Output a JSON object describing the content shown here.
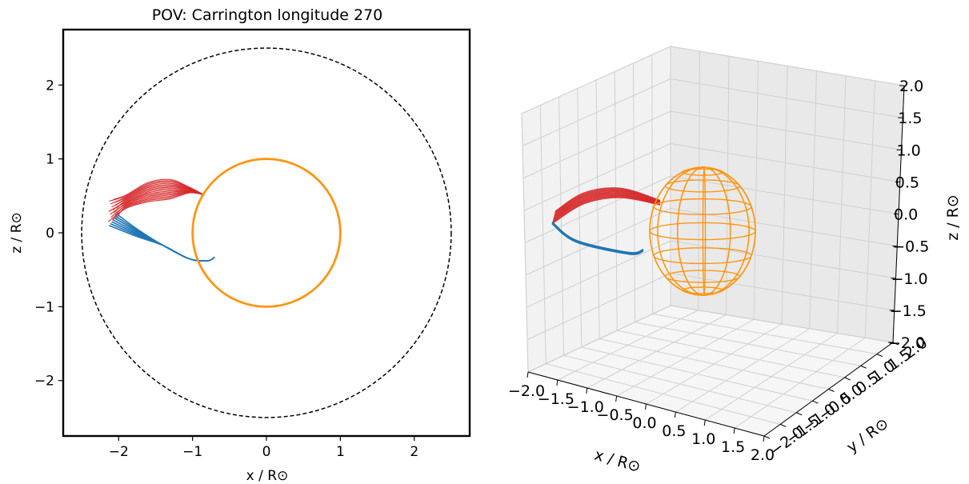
{
  "chart_data": [
    {
      "type": "line",
      "title": "POV: Carrington longitude 270",
      "xlabel": "x / R⊙",
      "ylabel": "z / R⊙",
      "xlim": [
        -2.75,
        2.75
      ],
      "ylim": [
        -2.75,
        2.75
      ],
      "xticks": [
        -2,
        -1,
        0,
        1,
        2
      ],
      "yticks": [
        -2,
        -1,
        0,
        1,
        2
      ],
      "xtick_labels": [
        "−2",
        "−1",
        "0",
        "1",
        "2"
      ],
      "ytick_labels": [
        "−2",
        "−1",
        "0",
        "1",
        "2"
      ],
      "grid": false,
      "colors": {
        "red": "#d62728",
        "blue": "#1f77b4",
        "orange": "#ff9510",
        "dashed": "#000000"
      },
      "circles": [
        {
          "name": "sun",
          "r": 1.0,
          "style": "solid",
          "color": "#ff9510"
        },
        {
          "name": "source-surface",
          "r": 2.5,
          "style": "dashed",
          "color": "#000000"
        }
      ],
      "series": [
        {
          "group": "red",
          "count": 16,
          "x": [
            -2.12,
            -1.9,
            -1.6,
            -1.3,
            -1.05,
            -0.86
          ],
          "y": [
            0.2,
            0.42,
            0.55,
            0.6,
            0.58,
            0.52
          ],
          "x_end_spread": [
            -2.14,
            -2.02
          ],
          "y_start_spread": [
            0.15,
            0.45
          ],
          "y_peak_spread": [
            0.48,
            0.74
          ]
        },
        {
          "group": "blue",
          "count": 7,
          "x": [
            -2.08,
            -1.75,
            -1.4,
            -1.05,
            -0.8,
            -0.7
          ],
          "y": [
            0.13,
            0.0,
            -0.17,
            -0.35,
            -0.38,
            -0.33
          ],
          "x_start_spread": [
            -2.13,
            -2.02
          ],
          "y_start_spread": [
            0.1,
            0.25
          ]
        }
      ]
    },
    {
      "type": "line",
      "projection": "3d",
      "xlabel": "x / R⊙",
      "ylabel": "y / R⊙",
      "zlabel": "z / R⊙",
      "xlim": [
        -2.0,
        2.0
      ],
      "ylim": [
        -2.0,
        2.0
      ],
      "zlim": [
        -2.0,
        2.0
      ],
      "xtick_labels": [
        "−2.0",
        "−1.5",
        "−1.0",
        "−0.5",
        "0.0",
        "0.5",
        "1.0",
        "1.5",
        "2.0"
      ],
      "ytick_labels": [
        "−2.0",
        "−1.5",
        "−1.0",
        "−0.5",
        "0.0",
        "0.5",
        "1.0",
        "1.5",
        "2.0"
      ],
      "ztick_labels": [
        "−2.0",
        "−1.5",
        "−1.0",
        "−0.5",
        "0.0",
        "0.5",
        "1.0",
        "1.5",
        "2.0"
      ],
      "grid": true,
      "sphere": {
        "r": 1.0,
        "color": "#ff9510",
        "style": "wireframe"
      },
      "series": [
        {
          "group": "red",
          "x": [
            -2.0,
            -1.5,
            -1.0
          ],
          "z": [
            0.2,
            0.5,
            0.55
          ]
        },
        {
          "group": "blue",
          "x": [
            -2.0,
            -1.5,
            -1.0
          ],
          "z": [
            0.15,
            -0.25,
            -0.35
          ]
        }
      ]
    }
  ]
}
